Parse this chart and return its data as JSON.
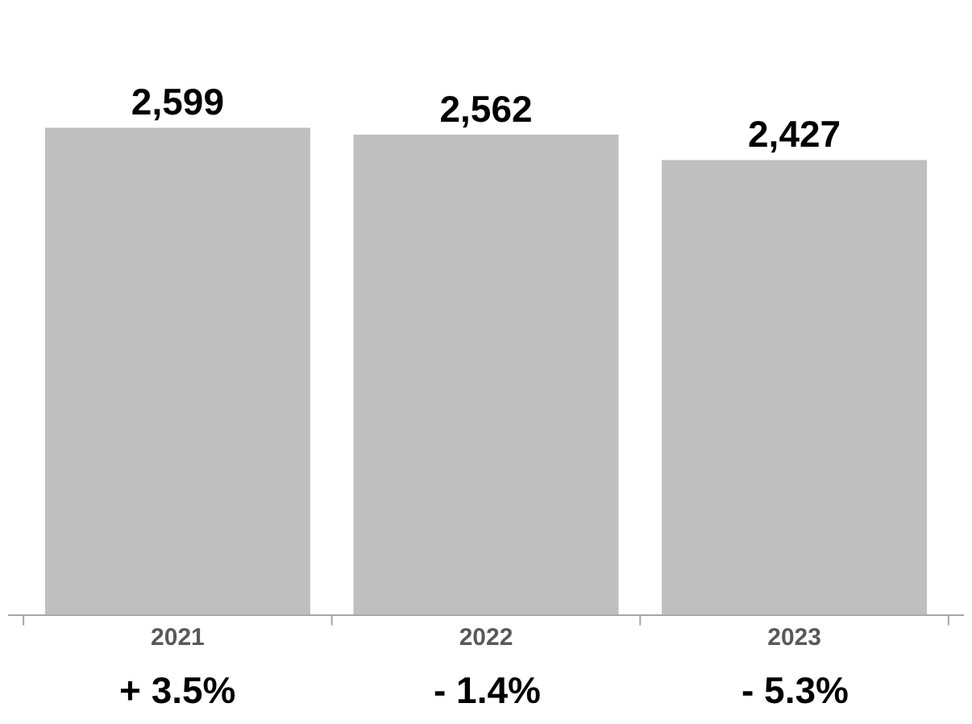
{
  "chart_data": {
    "type": "bar",
    "categories": [
      "2021",
      "2022",
      "2023"
    ],
    "values": [
      2599,
      2562,
      2427
    ],
    "value_labels": [
      "2,599",
      "2,562",
      "2,427"
    ],
    "color": "#bfbfbf",
    "annotations": [
      "+ 3.5%",
      "- 1.4%",
      "- 5.3%"
    ]
  }
}
